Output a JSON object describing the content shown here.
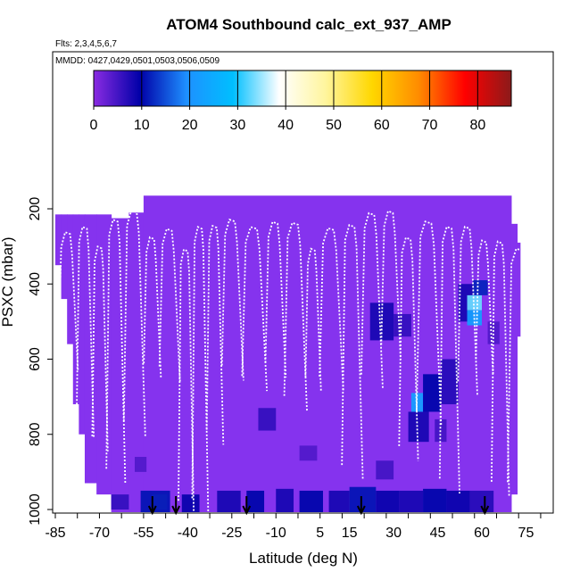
{
  "chart_data": {
    "type": "heatmap",
    "title": "ATOM4 Southbound calc_ext_937_AMP",
    "flights_note": "Flts: 2,3,4,5,6,7",
    "dates_note": "MMDD: 0427,0429,0501,0503,0506,0509",
    "xlabel": "Latitude (deg N)",
    "ylabel": "PSXC (mbar)",
    "xlim": [
      -88,
      92
    ],
    "ylim": [
      1015,
      140
    ],
    "y_reversed": true,
    "x_ticks": [
      -85,
      -70,
      -55,
      -40,
      -25,
      -10,
      5,
      15,
      30,
      45,
      60,
      75
    ],
    "x_tick_labels": [
      "-85",
      "-70",
      "-55",
      "-40",
      "-25",
      "-10",
      "5",
      "15",
      "30",
      "45",
      "60",
      "75"
    ],
    "y_ticks": [
      200,
      400,
      600,
      800,
      1000
    ],
    "y_tick_labels": [
      "200",
      "400",
      "600",
      "800",
      "1000"
    ],
    "colorbar": {
      "min": 0,
      "max": 87,
      "ticks": [
        0,
        10,
        20,
        30,
        40,
        50,
        60,
        70,
        80
      ],
      "tick_labels": [
        "0",
        "10",
        "20",
        "30",
        "40",
        "50",
        "60",
        "70",
        "80"
      ],
      "colors": [
        "#8a2be2",
        "#0000a8",
        "#1e90ff",
        "#00bfff",
        "#ffffff",
        "#fff59d",
        "#ffd700",
        "#ff8c00",
        "#ff0000",
        "#8b1a1a"
      ]
    },
    "background_color": "#8533ee",
    "arrow_latitudes": [
      -52,
      -44,
      -20,
      19,
      61
    ],
    "enhanced_cells": [
      {
        "lat": [
          -52,
          -47
        ],
        "p": [
          960,
          1000
        ],
        "value": 33
      },
      {
        "lat": [
          -56,
          -46
        ],
        "p": [
          950,
          1010
        ],
        "value": 11
      },
      {
        "lat": [
          -66,
          -60
        ],
        "p": [
          960,
          1000
        ],
        "value": 6
      },
      {
        "lat": [
          -42,
          -36
        ],
        "p": [
          960,
          1010
        ],
        "value": 9
      },
      {
        "lat": [
          -30,
          -22
        ],
        "p": [
          950,
          1010
        ],
        "value": 8
      },
      {
        "lat": [
          -20,
          -14
        ],
        "p": [
          950,
          1010
        ],
        "value": 10
      },
      {
        "lat": [
          -10,
          -4
        ],
        "p": [
          945,
          1010
        ],
        "value": 8
      },
      {
        "lat": [
          -2,
          6
        ],
        "p": [
          950,
          1010
        ],
        "value": 10
      },
      {
        "lat": [
          8,
          15
        ],
        "p": [
          950,
          1010
        ],
        "value": 8
      },
      {
        "lat": [
          15,
          24
        ],
        "p": [
          940,
          1010
        ],
        "value": 11
      },
      {
        "lat": [
          24,
          32
        ],
        "p": [
          950,
          1010
        ],
        "value": 9
      },
      {
        "lat": [
          32,
          40
        ],
        "p": [
          950,
          1010
        ],
        "value": 8
      },
      {
        "lat": [
          40,
          48
        ],
        "p": [
          945,
          1010
        ],
        "value": 10
      },
      {
        "lat": [
          48,
          56
        ],
        "p": [
          950,
          1010
        ],
        "value": 9
      },
      {
        "lat": [
          56,
          64
        ],
        "p": [
          950,
          1010
        ],
        "value": 7
      },
      {
        "lat": [
          -16,
          -10
        ],
        "p": [
          730,
          790
        ],
        "value": 6
      },
      {
        "lat": [
          -2,
          4
        ],
        "p": [
          830,
          870
        ],
        "value": 4
      },
      {
        "lat": [
          24,
          30
        ],
        "p": [
          870,
          920
        ],
        "value": 5
      },
      {
        "lat": [
          35,
          42
        ],
        "p": [
          740,
          820
        ],
        "value": 8
      },
      {
        "lat": [
          36,
          40
        ],
        "p": [
          690,
          740
        ],
        "value": 22
      },
      {
        "lat": [
          40,
          46
        ],
        "p": [
          640,
          740
        ],
        "value": 10
      },
      {
        "lat": [
          46,
          52
        ],
        "p": [
          600,
          720
        ],
        "value": 7
      },
      {
        "lat": [
          52,
          57
        ],
        "p": [
          400,
          500
        ],
        "value": 8
      },
      {
        "lat": [
          55,
          60
        ],
        "p": [
          430,
          470
        ],
        "value": 33
      },
      {
        "lat": [
          55,
          60
        ],
        "p": [
          470,
          510
        ],
        "value": 22
      },
      {
        "lat": [
          57,
          62
        ],
        "p": [
          390,
          430
        ],
        "value": 12
      },
      {
        "lat": [
          22,
          30
        ],
        "p": [
          450,
          550
        ],
        "value": 8
      },
      {
        "lat": [
          30,
          36
        ],
        "p": [
          480,
          540
        ],
        "value": 6
      },
      {
        "lat": [
          44,
          48
        ],
        "p": [
          760,
          820
        ],
        "value": 5
      },
      {
        "lat": [
          -58,
          -54
        ],
        "p": [
          860,
          900
        ],
        "value": 4
      },
      {
        "lat": [
          62,
          66
        ],
        "p": [
          500,
          560
        ],
        "value": 4
      }
    ],
    "profiles_note": "white dotted curves trace aircraft pressure profiles"
  }
}
